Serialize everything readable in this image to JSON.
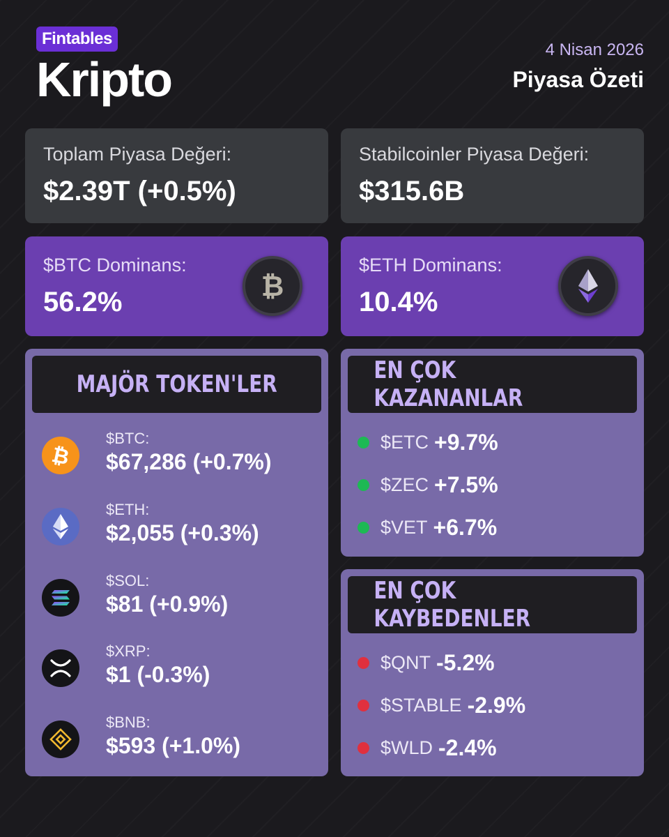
{
  "header": {
    "brand": "Fintables",
    "title": "Kripto",
    "date": "4 Nisan 2026",
    "subtitle": "Piyasa Özeti"
  },
  "summary": {
    "total_market_cap": {
      "label": "Toplam Piyasa Değeri:",
      "value": "$2.39T (+0.5%)"
    },
    "stablecoin_market_cap": {
      "label": "Stabilcoinler Piyasa Değeri:",
      "value": "$315.6B"
    },
    "btc_dominance": {
      "label": "$BTC Dominans:",
      "value": "56.2%"
    },
    "eth_dominance": {
      "label": "$ETH Dominans:",
      "value": "10.4%"
    }
  },
  "major_tokens": {
    "title": "MAJÖR TOKEN'LER",
    "items": [
      {
        "symbol": "$BTC:",
        "value": "$67,286 (+0.7%)",
        "icon": "bitcoin-icon"
      },
      {
        "symbol": "$ETH:",
        "value": "$2,055 (+0.3%)",
        "icon": "ethereum-icon"
      },
      {
        "symbol": "$SOL:",
        "value": "$81 (+0.9%)",
        "icon": "solana-icon"
      },
      {
        "symbol": "$XRP:",
        "value": "$1 (-0.3%)",
        "icon": "xrp-icon"
      },
      {
        "symbol": "$BNB:",
        "value": "$593 (+1.0%)",
        "icon": "bnb-icon"
      }
    ]
  },
  "top_gainers": {
    "title": "EN ÇOK KAZANANLAR",
    "items": [
      {
        "symbol": "$ETC",
        "change": "+9.7%"
      },
      {
        "symbol": "$ZEC",
        "change": "+7.5%"
      },
      {
        "symbol": "$VET",
        "change": "+6.7%"
      }
    ]
  },
  "top_losers": {
    "title": "EN ÇOK KAYBEDENLER",
    "items": [
      {
        "symbol": "$QNT",
        "change": "-5.2%"
      },
      {
        "symbol": "$STABLE",
        "change": "-2.9%"
      },
      {
        "symbol": "$WLD",
        "change": "-2.4%"
      }
    ]
  },
  "colors": {
    "brand_purple": "#6b2fd6",
    "dominance_card": "#6b3fb0",
    "panel": "#786aa8",
    "gainer_dot": "#1db954",
    "loser_dot": "#e0303e"
  }
}
